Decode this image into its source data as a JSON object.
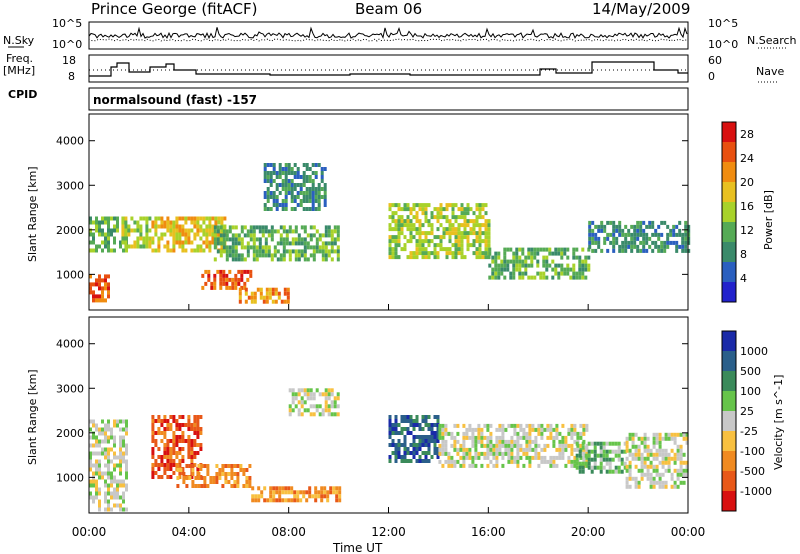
{
  "header": {
    "station": "Prince George (fitACF)",
    "beam": "Beam 06",
    "date": "14/May/2009"
  },
  "left_labels": {
    "nsky": "N.Sky",
    "nsky_top": "10^5",
    "nsky_bottom": "10^0",
    "freq": "Freq.",
    "freq_unit": "[MHz]",
    "freq_top": "18",
    "freq_bottom": "8",
    "cpid": "CPID"
  },
  "right_labels": {
    "nsearch": "N.Search",
    "nsearch_top": "10^5",
    "nsearch_bottom": "10^0",
    "nave": "Nave",
    "nave_top": "60",
    "nave_bottom": "0"
  },
  "cpid_text": "normalsound (fast) -157",
  "colors": {
    "power": [
      "#2222cc",
      "#2a5fbf",
      "#3a8a6a",
      "#55aa55",
      "#a8d22a",
      "#e8c020",
      "#f08c10",
      "#e85010",
      "#d81010"
    ],
    "velocity": [
      "#1a2aa8",
      "#2a5f8a",
      "#3a8a5a",
      "#66c44a",
      "#c8c8c8",
      "#f8c040",
      "#f08a20",
      "#e85818",
      "#d81010"
    ]
  },
  "chart_data": [
    {
      "type": "heatmap",
      "panel": "power",
      "ylabel": "Slant Range [km]",
      "yticks": [
        "1000",
        "2000",
        "3000",
        "4000"
      ],
      "ylim": [
        200,
        4600
      ],
      "xlim": [
        "00:00",
        "24:00"
      ],
      "colorbar": {
        "label": "Power [dB]",
        "ticks": [
          "4",
          "8",
          "12",
          "16",
          "20",
          "24",
          "28"
        ],
        "range": [
          0,
          30
        ]
      },
      "echo_regions": [
        {
          "time": [
            0.0,
            0.8
          ],
          "range": [
            400,
            1000
          ],
          "value": 28
        },
        {
          "time": [
            0.0,
            1.5
          ],
          "range": [
            1500,
            2300
          ],
          "value": 12
        },
        {
          "time": [
            1.3,
            2.5
          ],
          "range": [
            1600,
            2300
          ],
          "value": 14
        },
        {
          "time": [
            2.5,
            5.5
          ],
          "range": [
            1500,
            2300
          ],
          "value": 20
        },
        {
          "time": [
            4.5,
            6.5
          ],
          "range": [
            700,
            1100
          ],
          "value": 28
        },
        {
          "time": [
            6.0,
            8.0
          ],
          "range": [
            400,
            700
          ],
          "value": 24
        },
        {
          "time": [
            5.0,
            10.0
          ],
          "range": [
            1300,
            2100
          ],
          "value": 10
        },
        {
          "time": [
            7.0,
            9.5
          ],
          "range": [
            2500,
            3500
          ],
          "value": 8
        },
        {
          "time": [
            12.0,
            16.0
          ],
          "range": [
            1400,
            2600
          ],
          "value": 14
        },
        {
          "time": [
            16.0,
            20.0
          ],
          "range": [
            900,
            1600
          ],
          "value": 12
        },
        {
          "time": [
            20.0,
            24.0
          ],
          "range": [
            1500,
            2200
          ],
          "value": 8
        }
      ]
    },
    {
      "type": "heatmap",
      "panel": "velocity",
      "ylabel": "Slant Range [km]",
      "yticks": [
        "1000",
        "2000",
        "3000",
        "4000"
      ],
      "ylim": [
        200,
        4600
      ],
      "xlim": [
        "00:00",
        "24:00"
      ],
      "xticks": [
        "00:00",
        "04:00",
        "08:00",
        "12:00",
        "16:00",
        "20:00",
        "00:00"
      ],
      "xlabel": "Time UT",
      "colorbar": {
        "label": "Velocity [m s^-1]",
        "ticks": [
          "1000",
          "500",
          "100",
          "25",
          "-25",
          "-100",
          "-500",
          "-1000"
        ]
      },
      "echo_regions": [
        {
          "time": [
            0.0,
            1.5
          ],
          "range": [
            300,
            2300
          ],
          "value": 0
        },
        {
          "time": [
            2.5,
            4.5
          ],
          "range": [
            1000,
            2400
          ],
          "value": -500
        },
        {
          "time": [
            3.5,
            6.5
          ],
          "range": [
            800,
            1300
          ],
          "value": -100
        },
        {
          "time": [
            6.5,
            10.0
          ],
          "range": [
            500,
            800
          ],
          "value": -100
        },
        {
          "time": [
            8.0,
            10.0
          ],
          "range": [
            2400,
            3000
          ],
          "value": 0
        },
        {
          "time": [
            12.0,
            14.0
          ],
          "range": [
            1400,
            2400
          ],
          "value": 500
        },
        {
          "time": [
            14.0,
            20.0
          ],
          "range": [
            1300,
            2200
          ],
          "value": 0
        },
        {
          "time": [
            19.5,
            21.5
          ],
          "range": [
            1100,
            1800
          ],
          "value": 100
        },
        {
          "time": [
            21.5,
            24.0
          ],
          "range": [
            800,
            2000
          ],
          "value": 0
        }
      ]
    }
  ]
}
